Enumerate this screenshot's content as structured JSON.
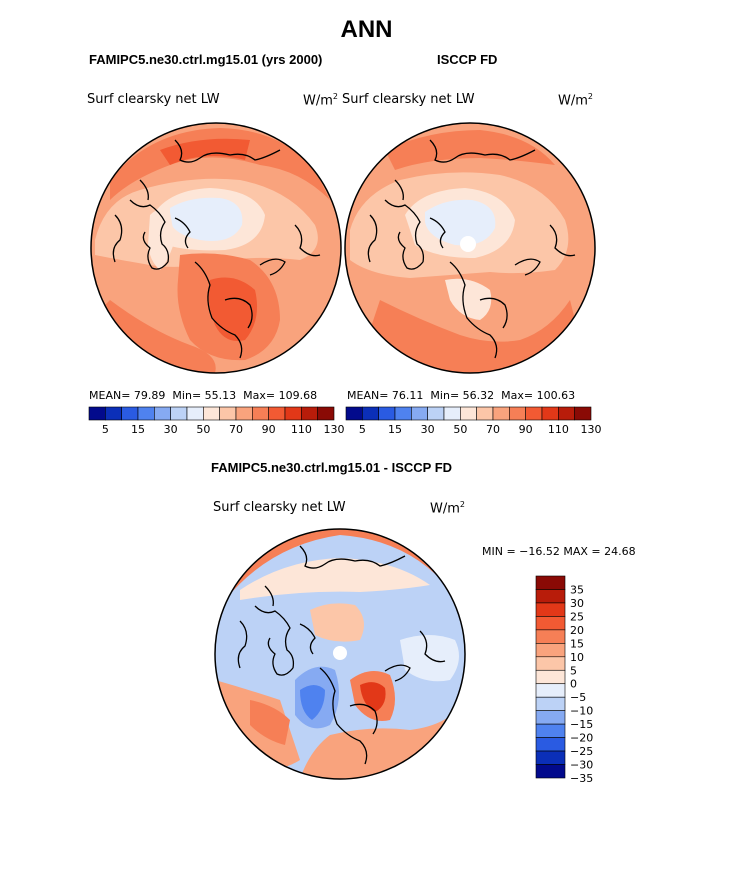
{
  "page_title": "ANN",
  "chart_data": [
    {
      "type": "heatmap",
      "projection": "north polar stereographic",
      "title": "FAMIPC5.ne30.ctrl.mg15.01 (yrs 2000)",
      "variable": "Surf clearsky net LW",
      "units": "W/m",
      "units_exp": "2",
      "stats": {
        "mean_label": "MEAN=",
        "mean": "79.89",
        "min_label": "Min=",
        "min": "55.13",
        "max_label": "Max=",
        "max": "109.68"
      },
      "colorbar_ticks": [
        "5",
        "15",
        "30",
        "50",
        "70",
        "90",
        "110",
        "130"
      ],
      "colorbar_colors": [
        "#020a8c",
        "#0b2fb8",
        "#2a5be2",
        "#4f82ef",
        "#86aaf2",
        "#bcd2f6",
        "#e6eefb",
        "#fde6d8",
        "#fcc6a8",
        "#f9a37d",
        "#f67f56",
        "#f25a33",
        "#e23818",
        "#b81c0a",
        "#8a0a05"
      ]
    },
    {
      "type": "heatmap",
      "projection": "north polar stereographic",
      "title": "ISCCP FD",
      "variable": "Surf clearsky net LW",
      "units": "W/m",
      "units_exp": "2",
      "stats": {
        "mean_label": "MEAN=",
        "mean": "76.11",
        "min_label": "Min=",
        "min": "56.32",
        "max_label": "Max=",
        "max": "100.63"
      },
      "colorbar_ticks": [
        "5",
        "15",
        "30",
        "50",
        "70",
        "90",
        "110",
        "130"
      ],
      "colorbar_colors": [
        "#020a8c",
        "#0b2fb8",
        "#2a5be2",
        "#4f82ef",
        "#86aaf2",
        "#bcd2f6",
        "#e6eefb",
        "#fde6d8",
        "#fcc6a8",
        "#f9a37d",
        "#f67f56",
        "#f25a33",
        "#e23818",
        "#b81c0a",
        "#8a0a05"
      ]
    },
    {
      "type": "heatmap",
      "projection": "north polar stereographic",
      "title": "FAMIPC5.ne30.ctrl.mg15.01 - ISCCP FD",
      "variable": "Surf clearsky net LW",
      "units": "W/m",
      "units_exp": "2",
      "stats": {
        "text": "MIN = −16.52 MAX =  24.68",
        "min": -16.52,
        "max": 24.68
      },
      "colorbar_ticks": [
        "35",
        "30",
        "25",
        "20",
        "15",
        "10",
        "5",
        "0",
        "−5",
        "−10",
        "−15",
        "−20",
        "−25",
        "−30",
        "−35"
      ],
      "colorbar_colors": [
        "#8a0a05",
        "#b81c0a",
        "#e23818",
        "#f25a33",
        "#f67f56",
        "#f9a37d",
        "#fcc6a8",
        "#fde6d8",
        "#e6eefb",
        "#bcd2f6",
        "#86aaf2",
        "#4f82ef",
        "#2a5be2",
        "#0b2fb8",
        "#020a8c"
      ]
    }
  ]
}
